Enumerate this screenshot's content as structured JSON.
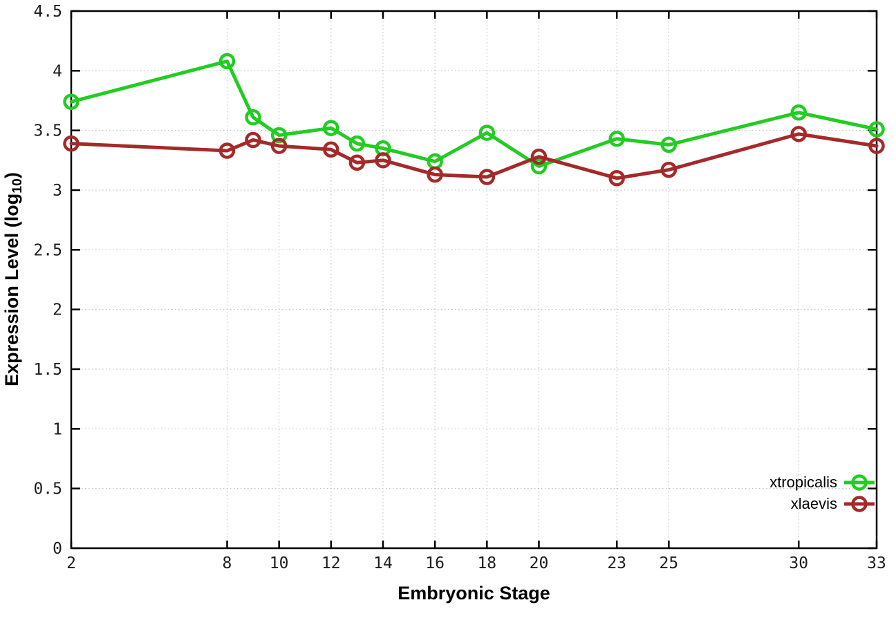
{
  "chart_data": {
    "type": "line",
    "title": "",
    "xlabel": "Embryonic Stage",
    "ylabel": "Expression Level (log10)",
    "ylabel_parts": {
      "main": "Expression Level (log",
      "sub": "10",
      "end": ")"
    },
    "x": [
      2,
      8,
      9,
      10,
      12,
      13,
      14,
      16,
      18,
      20,
      23,
      25,
      30,
      33
    ],
    "series": [
      {
        "name": "xtropicalis",
        "color": "#22cc22",
        "values": [
          3.74,
          4.08,
          3.61,
          3.46,
          3.52,
          3.39,
          3.35,
          3.24,
          3.48,
          3.2,
          3.43,
          3.38,
          3.65,
          3.51
        ]
      },
      {
        "name": "xlaevis",
        "color": "#a42a2a",
        "values": [
          3.39,
          3.33,
          3.42,
          3.37,
          3.34,
          3.23,
          3.25,
          3.13,
          3.11,
          3.28,
          3.1,
          3.17,
          3.47,
          3.37
        ]
      }
    ],
    "xlim": [
      2,
      33
    ],
    "ylim": [
      0,
      4.5
    ],
    "x_ticks": [
      2,
      8,
      10,
      12,
      14,
      16,
      18,
      20,
      23,
      25,
      30,
      33
    ],
    "x_tick_labels": [
      "2",
      "8",
      "10",
      "12",
      "14",
      "16",
      "18",
      "20",
      "23",
      "25",
      "30",
      "33"
    ],
    "y_ticks": [
      0,
      0.5,
      1,
      1.5,
      2,
      2.5,
      3,
      3.5,
      4,
      4.5
    ],
    "y_tick_labels": [
      "0",
      "0.5",
      "1",
      "1.5",
      "2",
      "2.5",
      "3",
      "3.5",
      "4",
      "4.5"
    ],
    "grid": true,
    "legend_position": "bottom-right",
    "legend": [
      "xtropicalis",
      "xlaevis"
    ]
  },
  "style": {
    "background": "#ffffff",
    "grid_color": "#b8b8b8",
    "axis_color": "#000000",
    "tick_label_color": "#1c1c1c"
  }
}
